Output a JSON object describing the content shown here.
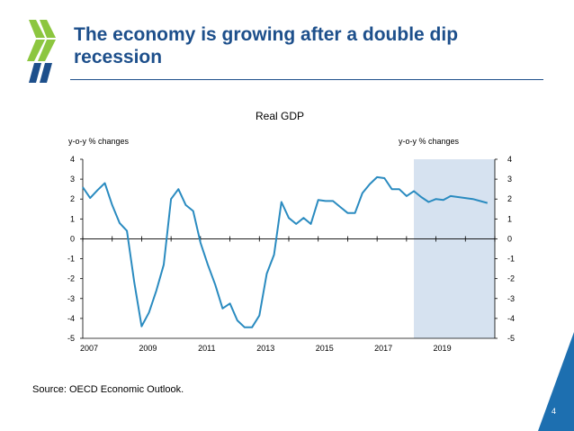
{
  "slide": {
    "title_line1": "The economy is growing after a double dip",
    "title_line2": "recession",
    "source": "Source: OECD Economic Outlook.",
    "page_number": "4"
  },
  "colors": {
    "brand_blue": "#1d4f8b",
    "line": "#2a8bc0",
    "projection_shade": "#d6e2f0",
    "logo_green": "#8cc63f"
  },
  "chart_data": {
    "type": "line",
    "title": "Real GDP",
    "ylabel_left": "y-o-y % changes",
    "ylabel_right": "y-o-y % changes",
    "xlim": [
      2007,
      2021
    ],
    "ylim": [
      -5,
      4
    ],
    "yticks": [
      "4",
      "3",
      "2",
      "1",
      "0",
      "-1",
      "-2",
      "-3",
      "-4",
      "-5"
    ],
    "xticks": [
      "2007",
      "2009",
      "2011",
      "2013",
      "2015",
      "2017",
      "2019"
    ],
    "projection_start": 2018.25,
    "series": [
      {
        "x": [
          2007.0,
          2007.25,
          2007.5,
          2007.75,
          2008.0,
          2008.25,
          2008.5,
          2008.75,
          2009.0,
          2009.25,
          2009.5,
          2009.75,
          2010.0,
          2010.25,
          2010.5,
          2010.75,
          2011.0,
          2011.25,
          2011.5,
          2011.75,
          2012.0,
          2012.25,
          2012.5,
          2012.75,
          2013.0,
          2013.25,
          2013.5,
          2013.75,
          2014.0,
          2014.25,
          2014.5,
          2014.75,
          2015.0,
          2015.25,
          2015.5,
          2015.75,
          2016.0,
          2016.25,
          2016.5,
          2016.75,
          2017.0,
          2017.25,
          2017.5,
          2017.75,
          2018.0,
          2018.25,
          2018.5,
          2018.75,
          2019.0,
          2019.25,
          2019.5,
          2019.75,
          2020.0,
          2020.25,
          2020.5,
          2020.75
        ],
        "y": [
          2.6,
          2.05,
          2.45,
          2.8,
          1.7,
          0.8,
          0.4,
          -2.2,
          -4.4,
          -3.7,
          -2.6,
          -1.3,
          2.0,
          2.5,
          1.7,
          1.4,
          -0.2,
          -1.3,
          -2.3,
          -3.5,
          -3.25,
          -4.1,
          -4.45,
          -4.45,
          -3.85,
          -1.75,
          -0.8,
          1.85,
          1.05,
          0.75,
          1.05,
          0.75,
          1.95,
          1.9,
          1.9,
          1.6,
          1.3,
          1.3,
          2.3,
          2.75,
          3.1,
          3.05,
          2.5,
          2.5,
          2.15,
          2.4,
          2.1,
          1.85,
          2.0,
          1.95,
          2.15,
          2.1,
          2.05,
          2.0,
          1.9,
          1.8
        ]
      }
    ]
  }
}
